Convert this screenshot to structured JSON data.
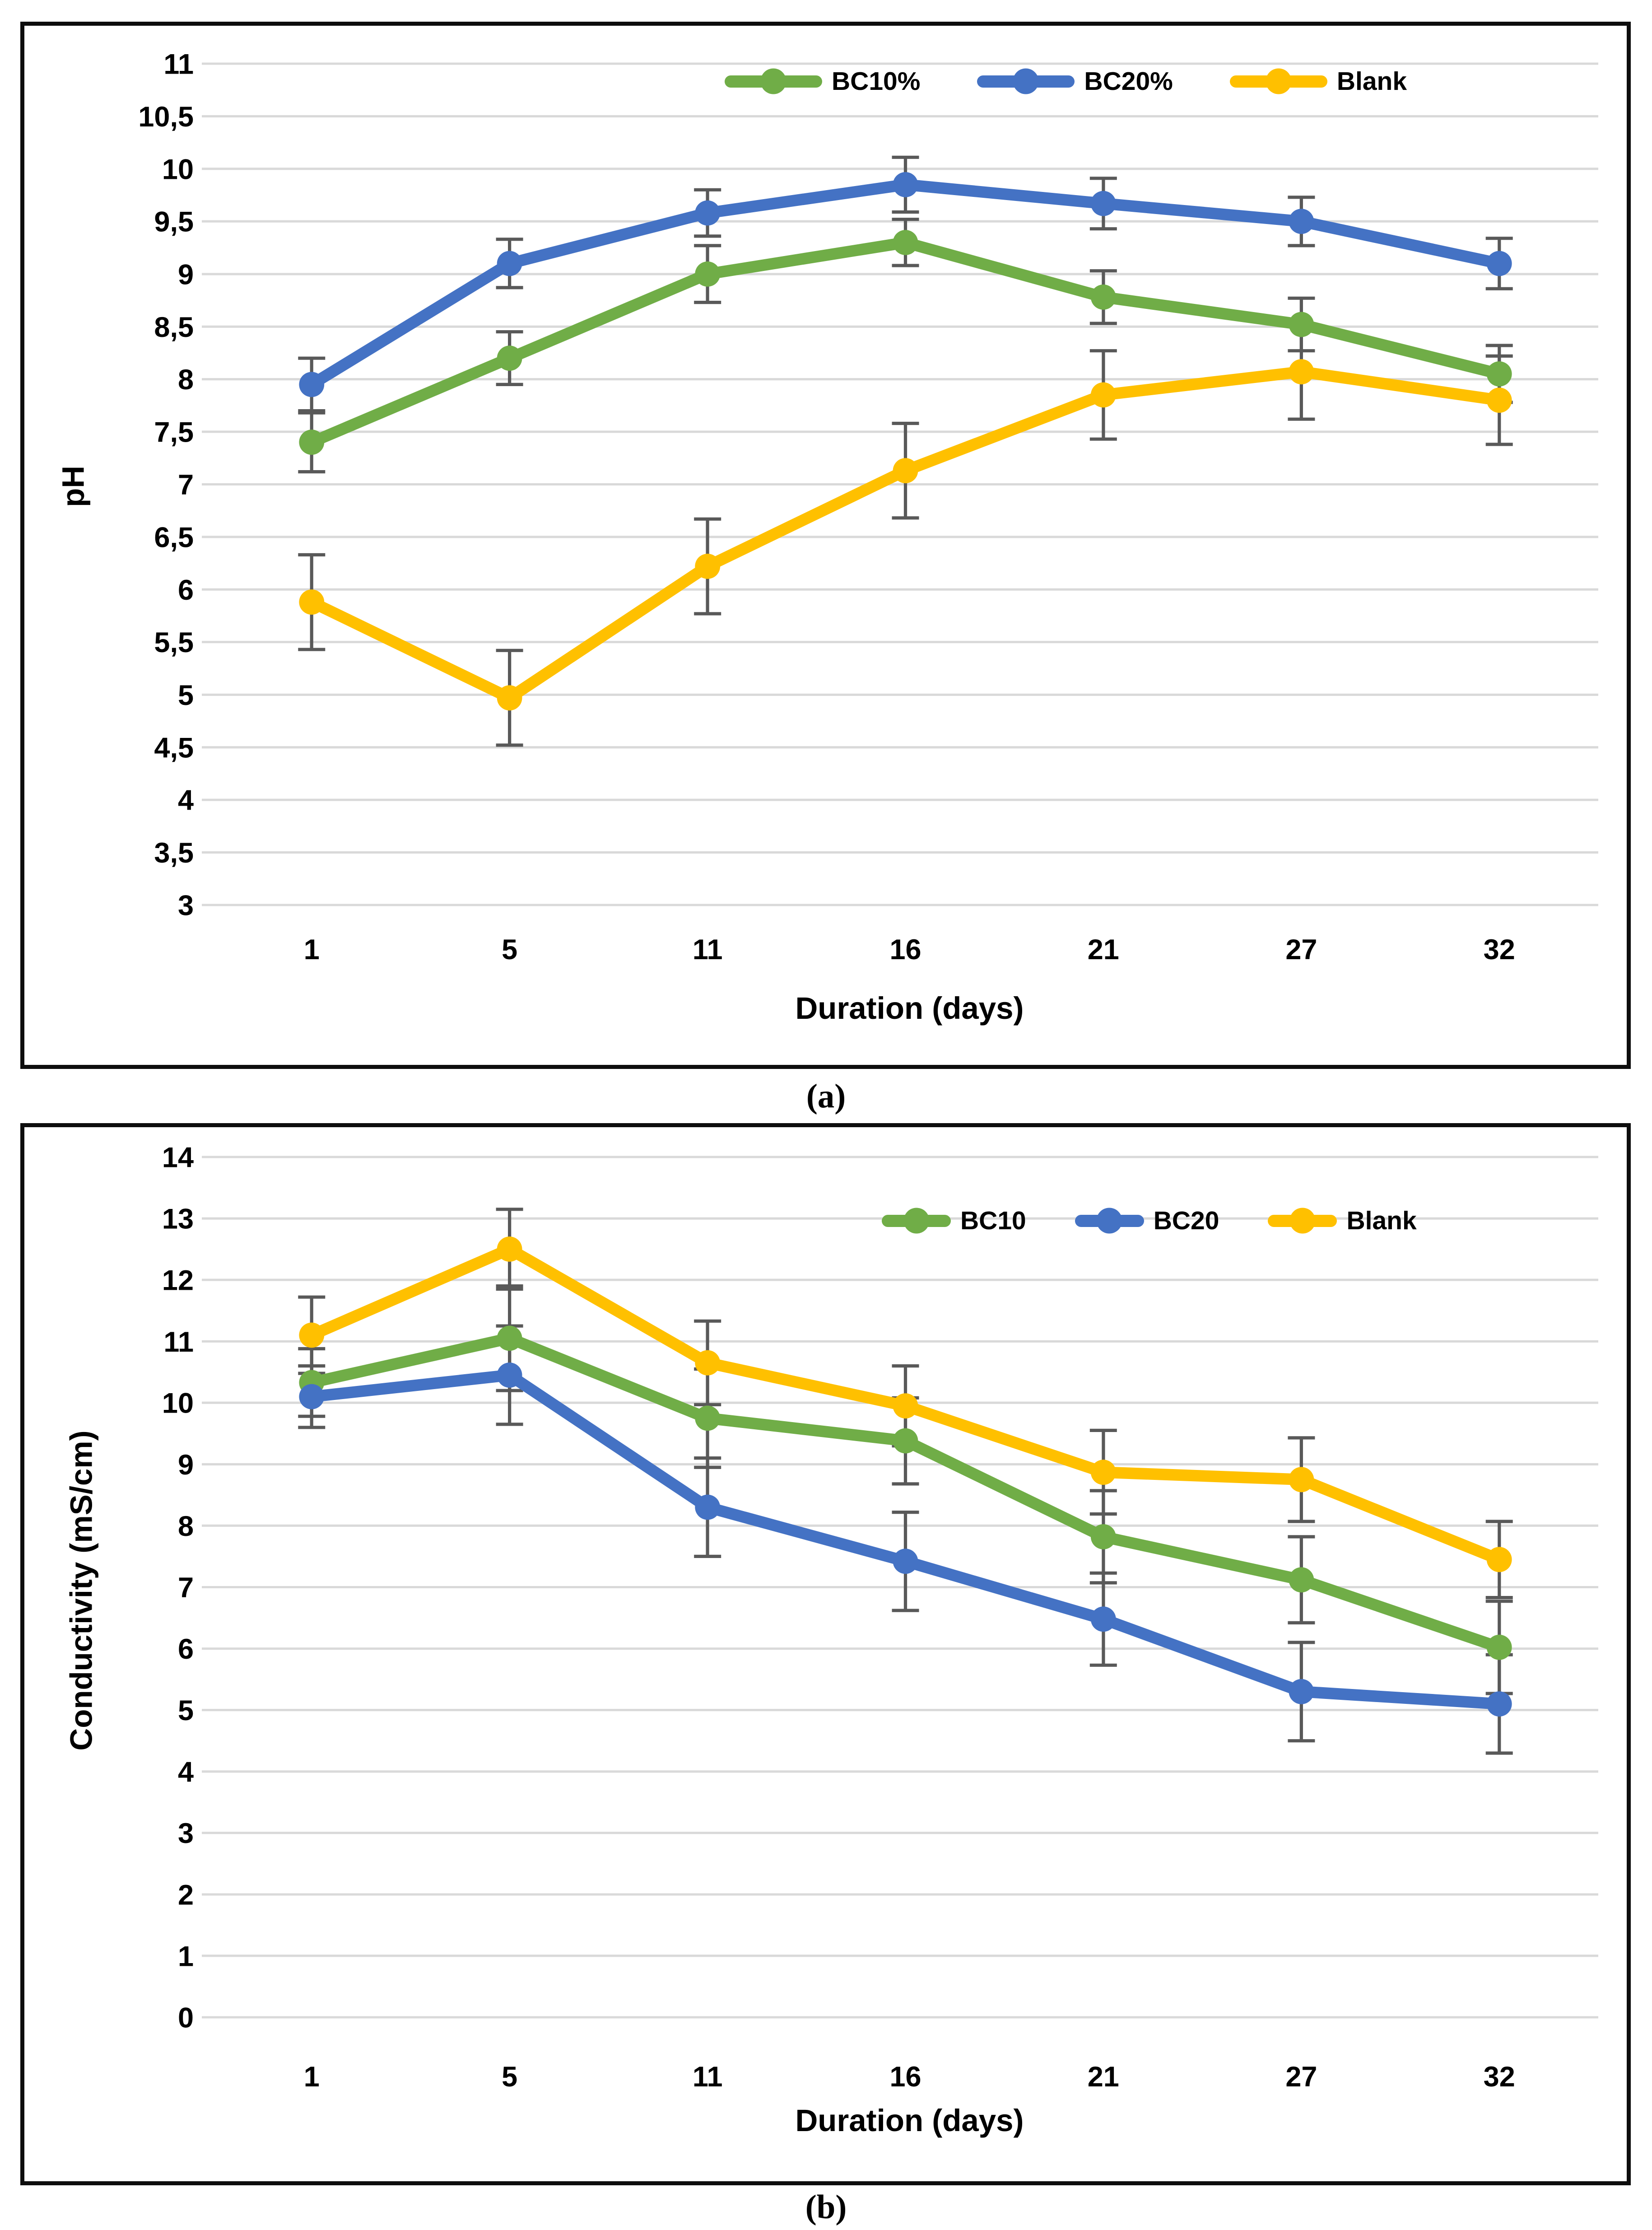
{
  "figure": {
    "background": "#FFFFFF",
    "border_color": "#0D0D0D",
    "grid_color": "#D9D9D9",
    "error_bar_color": "#595959",
    "text_color": "#000000"
  },
  "captions": {
    "a": "(a)",
    "b": "(b)"
  },
  "chart_data": [
    {
      "id": "a",
      "type": "line",
      "caption": "(a)",
      "x_axis": {
        "title": "Duration (days)",
        "categories": [
          "1",
          "5",
          "11",
          "16",
          "21",
          "27",
          "32"
        ]
      },
      "y_axis": {
        "title": "pH",
        "min": 3,
        "max": 11,
        "step": 0.5,
        "tick_labels": [
          "11",
          "10,5",
          "10",
          "9,5",
          "9",
          "8,5",
          "8",
          "7,5",
          "7",
          "6,5",
          "6",
          "5,5",
          "5",
          "4,5",
          "4",
          "3,5",
          "3"
        ]
      },
      "legend": {
        "position": "top-center",
        "entries": [
          "BC10%",
          "BC20%",
          "Blank"
        ]
      },
      "grid": true,
      "series": [
        {
          "name": "BC10%",
          "color": "#70AD47",
          "values": [
            7.4,
            8.2,
            9.0,
            9.3,
            8.78,
            8.52,
            8.05
          ],
          "errors": [
            0.28,
            0.25,
            0.27,
            0.22,
            0.25,
            0.25,
            0.27
          ]
        },
        {
          "name": "BC20%",
          "color": "#4472C4",
          "values": [
            7.95,
            9.1,
            9.58,
            9.85,
            9.67,
            9.5,
            9.1
          ],
          "errors": [
            0.25,
            0.23,
            0.22,
            0.26,
            0.24,
            0.23,
            0.24
          ]
        },
        {
          "name": "Blank",
          "color": "#FFC000",
          "values": [
            5.88,
            4.97,
            6.22,
            7.13,
            7.85,
            8.07,
            7.8
          ],
          "errors": [
            0.45,
            0.45,
            0.45,
            0.45,
            0.42,
            0.45,
            0.42
          ]
        }
      ]
    },
    {
      "id": "b",
      "type": "line",
      "caption": "(b)",
      "x_axis": {
        "title": "Duration (days)",
        "categories": [
          "1",
          "5",
          "11",
          "16",
          "21",
          "27",
          "32"
        ]
      },
      "y_axis": {
        "title": "Conductivity (mS/cm)",
        "min": 0,
        "max": 14,
        "step": 1,
        "tick_labels": [
          "14",
          "13",
          "12",
          "11",
          "10",
          "9",
          "8",
          "7",
          "6",
          "5",
          "4",
          "3",
          "2",
          "1",
          "0"
        ]
      },
      "legend": {
        "position": "top-center",
        "entries": [
          "BC10",
          "BC20",
          "Blank"
        ]
      },
      "grid": true,
      "series": [
        {
          "name": "BC10",
          "color": "#70AD47",
          "values": [
            10.33,
            11.05,
            9.75,
            9.38,
            7.82,
            7.12,
            6.02
          ],
          "errors": [
            0.55,
            0.85,
            0.8,
            0.7,
            0.75,
            0.7,
            0.75
          ]
        },
        {
          "name": "BC20",
          "color": "#4472C4",
          "values": [
            10.1,
            10.45,
            8.3,
            7.42,
            6.48,
            5.3,
            5.1
          ],
          "errors": [
            0.5,
            0.8,
            0.8,
            0.8,
            0.75,
            0.8,
            0.8
          ]
        },
        {
          "name": "Blank",
          "color": "#FFC000",
          "values": [
            11.1,
            12.5,
            10.65,
            9.95,
            8.87,
            8.75,
            7.45
          ],
          "errors": [
            0.62,
            0.65,
            0.68,
            0.65,
            0.68,
            0.68,
            0.62
          ]
        }
      ]
    }
  ]
}
